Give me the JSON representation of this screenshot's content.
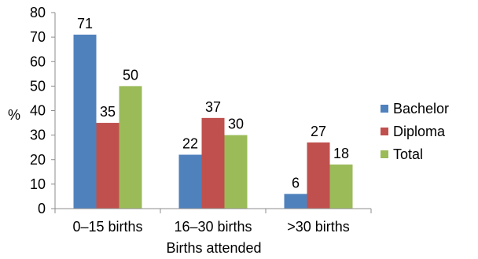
{
  "chart_data": {
    "type": "bar",
    "categories": [
      "0–15 births",
      "16–30 births",
      ">30 births"
    ],
    "series": [
      {
        "name": "Bachelor",
        "values": [
          71,
          22,
          6
        ],
        "color": "#4f81bd"
      },
      {
        "name": "Diploma",
        "values": [
          35,
          37,
          27
        ],
        "color": "#c0504d"
      },
      {
        "name": "Total",
        "values": [
          50,
          30,
          18
        ],
        "color": "#9bbb59"
      }
    ],
    "data_labels": [
      [
        "71",
        "22",
        "6"
      ],
      [
        "35",
        "37",
        "27"
      ],
      [
        "50",
        "30",
        "18"
      ]
    ],
    "title": "",
    "xlabel": "Births attended",
    "ylabel": "%",
    "ylim": [
      0,
      80
    ],
    "yticks": [
      0,
      10,
      20,
      30,
      40,
      50,
      60,
      70,
      80
    ],
    "grid": false,
    "legend_position": "right"
  }
}
